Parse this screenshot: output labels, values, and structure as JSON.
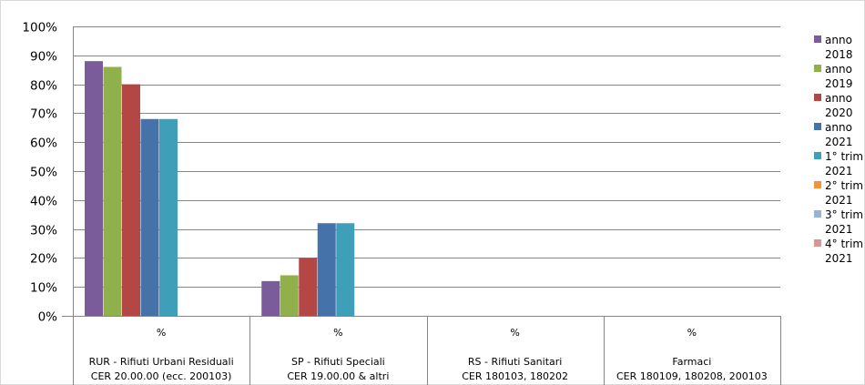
{
  "chart_data": {
    "type": "bar",
    "title": "",
    "xlabel": "",
    "ylabel": "",
    "ylim": [
      0,
      100
    ],
    "y_ticks": [
      "0%",
      "10%",
      "20%",
      "30%",
      "40%",
      "50%",
      "60%",
      "70%",
      "80%",
      "90%",
      "100%"
    ],
    "grid": true,
    "legend_position": "right",
    "categories": [
      {
        "group": "%",
        "line1": "RUR - Rifiuti Urbani Residuali",
        "line2": "CER 20.00.00 (ecc. 200103)"
      },
      {
        "group": "%",
        "line1": "SP - Rifiuti Speciali",
        "line2": "CER 19.00.00 & altri"
      },
      {
        "group": "%",
        "line1": "RS - Rifiuti Sanitari",
        "line2": "CER 180103, 180202"
      },
      {
        "group": "%",
        "line1": "Farmaci",
        "line2": "CER 180109, 180208, 200103"
      }
    ],
    "series": [
      {
        "name_line1": "anno",
        "name_line2": "2018",
        "color": "#7b5c9b",
        "values": [
          88,
          12,
          0,
          0
        ]
      },
      {
        "name_line1": "anno",
        "name_line2": "2019",
        "color": "#8fb04a",
        "values": [
          86,
          14,
          0,
          0
        ]
      },
      {
        "name_line1": "anno",
        "name_line2": "2020",
        "color": "#b44745",
        "values": [
          80,
          20,
          0,
          0
        ]
      },
      {
        "name_line1": "anno",
        "name_line2": "2021",
        "color": "#4672aa",
        "values": [
          68,
          32,
          0,
          0
        ]
      },
      {
        "name_line1": "1° trim",
        "name_line2": "2021",
        "color": "#3f9fb8",
        "values": [
          68,
          32,
          0,
          0
        ]
      },
      {
        "name_line1": "2° trim",
        "name_line2": "2021",
        "color": "#f2923a",
        "values": [
          0,
          0,
          0,
          0
        ]
      },
      {
        "name_line1": "3° trim",
        "name_line2": "2021",
        "color": "#95b3d7",
        "values": [
          0,
          0,
          0,
          0
        ]
      },
      {
        "name_line1": "4° trim",
        "name_line2": "2021",
        "color": "#d99694",
        "values": [
          0,
          0,
          0,
          0
        ]
      }
    ]
  }
}
